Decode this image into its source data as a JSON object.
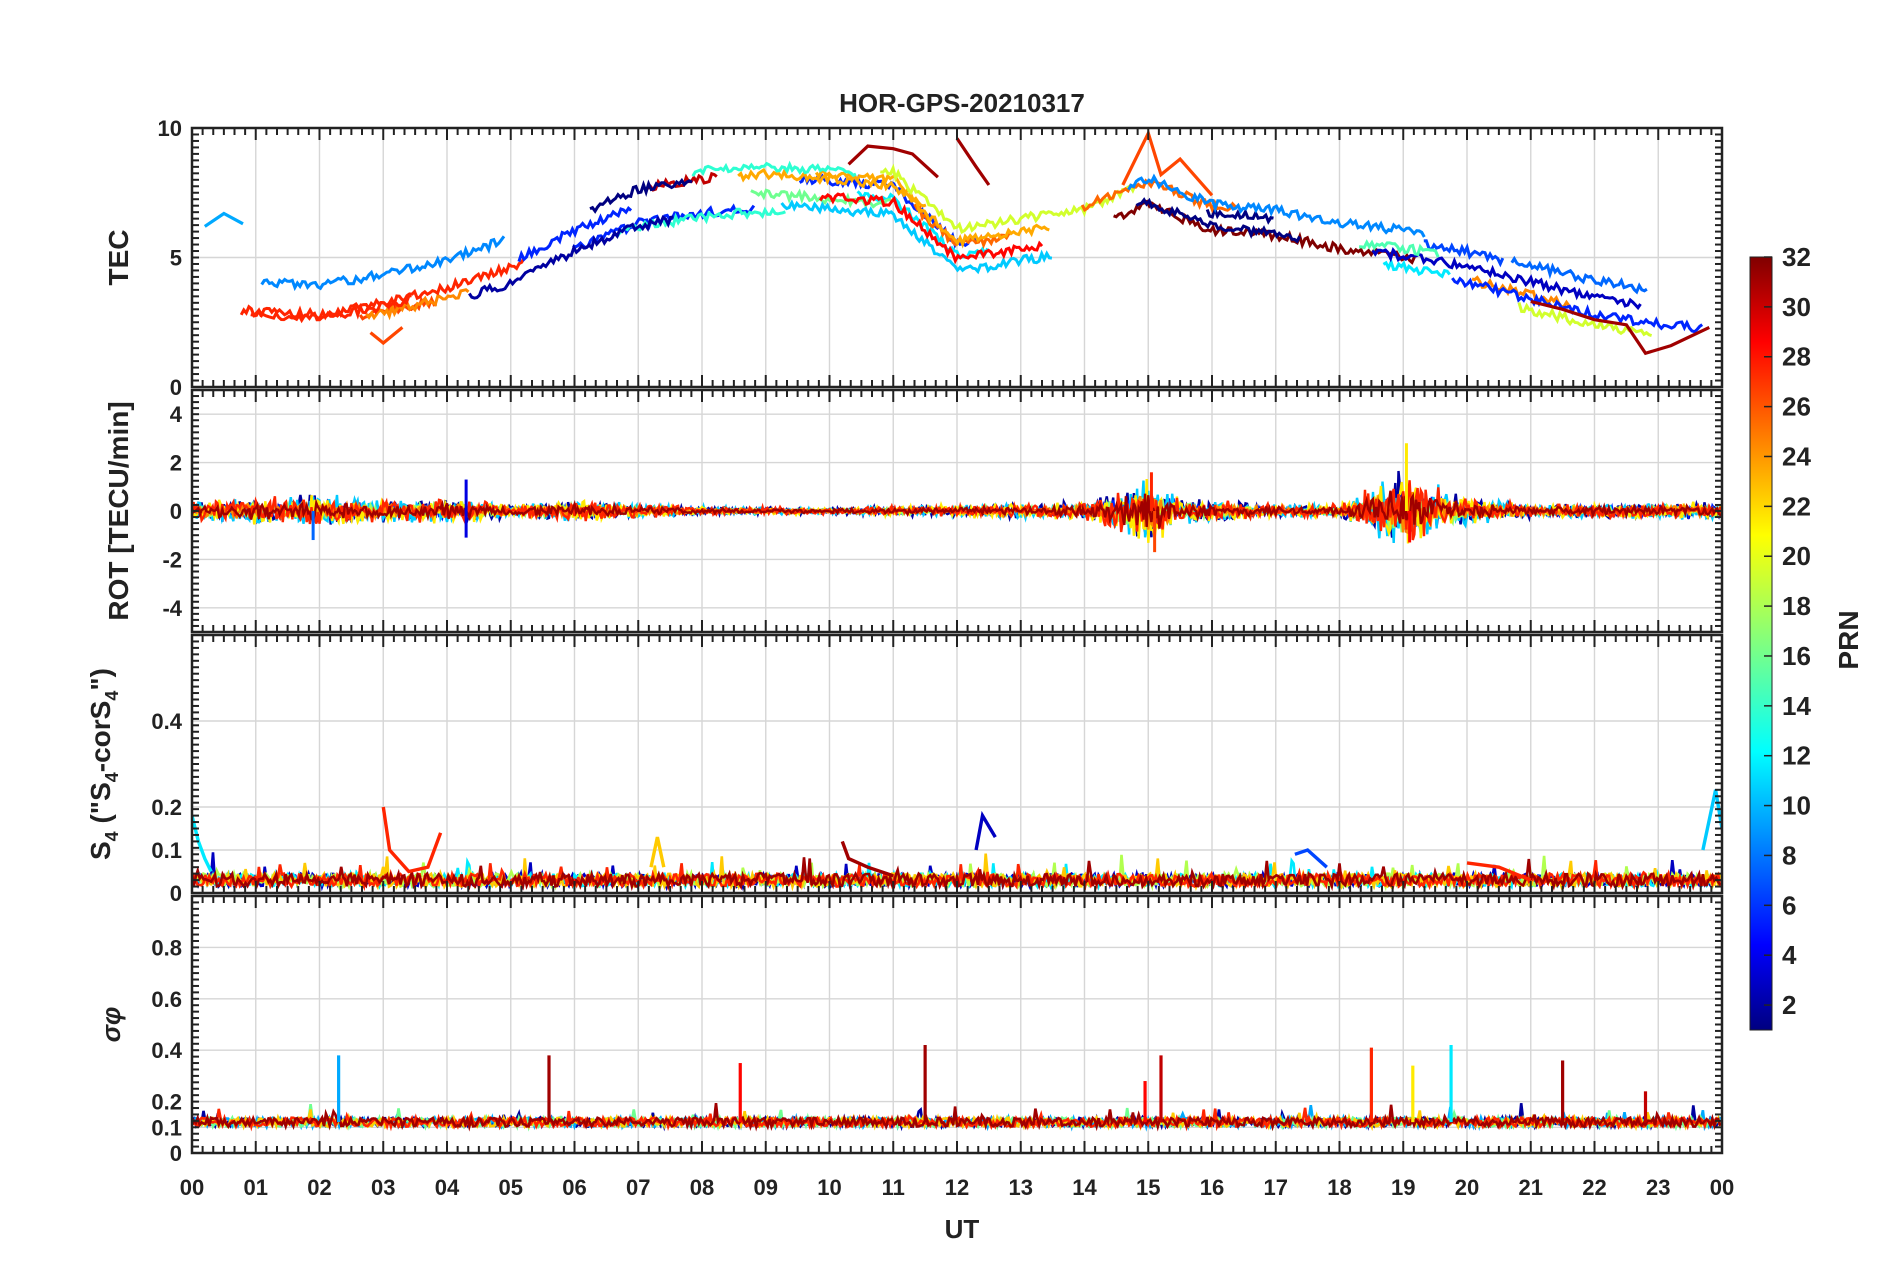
{
  "chart_data": {
    "type": "line",
    "title": "HOR-GPS-20210317",
    "xlabel": "UT",
    "x_ticks": [
      "00",
      "01",
      "02",
      "03",
      "04",
      "05",
      "06",
      "07",
      "08",
      "09",
      "10",
      "11",
      "12",
      "13",
      "14",
      "15",
      "16",
      "17",
      "18",
      "19",
      "20",
      "21",
      "22",
      "23",
      "00"
    ],
    "xlim": [
      0,
      24
    ],
    "grid": true,
    "colorbar": {
      "label": "PRN",
      "range": [
        1,
        32
      ],
      "ticks": [
        "2",
        "4",
        "6",
        "8",
        "10",
        "12",
        "14",
        "16",
        "18",
        "20",
        "22",
        "24",
        "26",
        "28",
        "30",
        "32"
      ],
      "colormap": "jet"
    },
    "panels": [
      {
        "ylabel": "TEC",
        "ylim": [
          0,
          10
        ],
        "y_ticks": [
          "0",
          "5",
          "10"
        ],
        "trend": [
          [
            0,
            3.4
          ],
          [
            1,
            3.3
          ],
          [
            2,
            3.2
          ],
          [
            3,
            3.6
          ],
          [
            4,
            4.2
          ],
          [
            5,
            5.0
          ],
          [
            6,
            6.2
          ],
          [
            7,
            7.2
          ],
          [
            8,
            7.6
          ],
          [
            9,
            7.8
          ],
          [
            10,
            7.6
          ],
          [
            11,
            7.4
          ],
          [
            12,
            5.2
          ],
          [
            13,
            5.6
          ],
          [
            14,
            6.0
          ],
          [
            15,
            7.0
          ],
          [
            16,
            6.0
          ],
          [
            17,
            5.8
          ],
          [
            18,
            5.3
          ],
          [
            19,
            5.0
          ],
          [
            20,
            4.6
          ],
          [
            21,
            4.0
          ],
          [
            22,
            3.4
          ],
          [
            23,
            3.0
          ],
          [
            24,
            2.8
          ]
        ],
        "highlights": [
          {
            "prn": 31,
            "x": [
              10.3,
              10.6,
              11.0,
              11.3,
              11.7
            ],
            "y": [
              8.6,
              9.3,
              9.2,
              9.0,
              8.1
            ]
          },
          {
            "prn": 31,
            "x": [
              12.0,
              12.3,
              12.5
            ],
            "y": [
              9.6,
              8.5,
              7.8
            ]
          },
          {
            "prn": 26,
            "x": [
              14.6,
              15.0,
              15.2,
              15.5,
              16.0
            ],
            "y": [
              7.8,
              9.8,
              8.2,
              8.8,
              7.4
            ]
          },
          {
            "prn": 31,
            "x": [
              21.0,
              21.5,
              22.0,
              22.5,
              22.8,
              23.2,
              23.8
            ],
            "y": [
              3.3,
              3.0,
              2.6,
              2.4,
              1.3,
              1.6,
              2.3
            ]
          },
          {
            "prn": 10,
            "x": [
              0.2,
              0.5,
              0.8
            ],
            "y": [
              6.2,
              6.7,
              6.3
            ]
          },
          {
            "prn": 26,
            "x": [
              2.8,
              3.0,
              3.3
            ],
            "y": [
              2.1,
              1.7,
              2.3
            ]
          }
        ]
      },
      {
        "ylabel": "ROT [TECU/min]",
        "ylim": [
          -5,
          5
        ],
        "y_ticks": [
          "-4",
          "-2",
          "0",
          "2",
          "4"
        ],
        "noise_amplitude": [
          [
            0,
            0.4
          ],
          [
            2,
            0.8
          ],
          [
            3,
            0.5
          ],
          [
            4,
            0.6
          ],
          [
            5,
            0.3
          ],
          [
            6,
            0.5
          ],
          [
            8,
            0.2
          ],
          [
            10,
            0.15
          ],
          [
            12,
            0.3
          ],
          [
            14,
            0.4
          ],
          [
            15,
            1.6
          ],
          [
            15.5,
            0.6
          ],
          [
            17,
            0.3
          ],
          [
            18,
            0.3
          ],
          [
            19,
            1.8
          ],
          [
            20,
            0.6
          ],
          [
            21,
            0.3
          ],
          [
            24,
            0.4
          ]
        ],
        "spikes": [
          {
            "x": 1.9,
            "y": -1.2,
            "prn": 8
          },
          {
            "x": 4.3,
            "y": 1.3,
            "prn": 4
          },
          {
            "x": 4.3,
            "y": -1.1,
            "prn": 4
          },
          {
            "x": 15.05,
            "y": 1.6,
            "prn": 27
          },
          {
            "x": 15.1,
            "y": -1.7,
            "prn": 26
          },
          {
            "x": 19.05,
            "y": 2.8,
            "prn": 21
          },
          {
            "x": 19.1,
            "y": -1.3,
            "prn": 28
          }
        ]
      },
      {
        "ylabel": "S4 (\"S4-corS4\")",
        "ylim": [
          0,
          0.6
        ],
        "y_ticks": [
          "0",
          "0.1",
          "0.2",
          "0.4"
        ],
        "baseline": 0.03,
        "events": [
          {
            "prn": 12,
            "x": [
              0.0,
              0.1,
              0.2,
              0.3
            ],
            "y": [
              0.18,
              0.12,
              0.08,
              0.05
            ]
          },
          {
            "prn": 27,
            "x": [
              3.0,
              3.1,
              3.4,
              3.7,
              3.9
            ],
            "y": [
              0.2,
              0.1,
              0.05,
              0.06,
              0.14
            ]
          },
          {
            "prn": 22,
            "x": [
              7.2,
              7.3,
              7.4
            ],
            "y": [
              0.06,
              0.13,
              0.06
            ]
          },
          {
            "prn": 31,
            "x": [
              10.2,
              10.3,
              10.6,
              11.0
            ],
            "y": [
              0.12,
              0.08,
              0.06,
              0.04
            ]
          },
          {
            "prn": 3,
            "x": [
              12.3,
              12.4,
              12.6
            ],
            "y": [
              0.1,
              0.18,
              0.13
            ]
          },
          {
            "prn": 7,
            "x": [
              17.3,
              17.5,
              17.8
            ],
            "y": [
              0.09,
              0.1,
              0.06
            ]
          },
          {
            "prn": 11,
            "x": [
              23.7,
              23.9,
              24.0
            ],
            "y": [
              0.1,
              0.24,
              0.15
            ]
          },
          {
            "prn": 27,
            "x": [
              20.0,
              20.5,
              21.0
            ],
            "y": [
              0.07,
              0.06,
              0.03
            ]
          }
        ]
      },
      {
        "ylabel": "σφ",
        "ylim": [
          0,
          1
        ],
        "y_ticks": [
          "0",
          "0.1",
          "0.2",
          "0.4",
          "0.6",
          "0.8"
        ],
        "baseline": 0.12,
        "spikes": [
          {
            "x": 2.3,
            "y": 0.38,
            "prn": 10
          },
          {
            "x": 5.6,
            "y": 0.38,
            "prn": 31
          },
          {
            "x": 8.6,
            "y": 0.35,
            "prn": 28
          },
          {
            "x": 11.5,
            "y": 0.42,
            "prn": 31
          },
          {
            "x": 14.95,
            "y": 0.28,
            "prn": 28
          },
          {
            "x": 15.2,
            "y": 0.38,
            "prn": 30
          },
          {
            "x": 18.5,
            "y": 0.41,
            "prn": 27
          },
          {
            "x": 19.15,
            "y": 0.34,
            "prn": 21
          },
          {
            "x": 19.75,
            "y": 0.42,
            "prn": 12
          },
          {
            "x": 21.5,
            "y": 0.36,
            "prn": 31
          },
          {
            "x": 22.8,
            "y": 0.24,
            "prn": 30
          }
        ]
      }
    ]
  }
}
